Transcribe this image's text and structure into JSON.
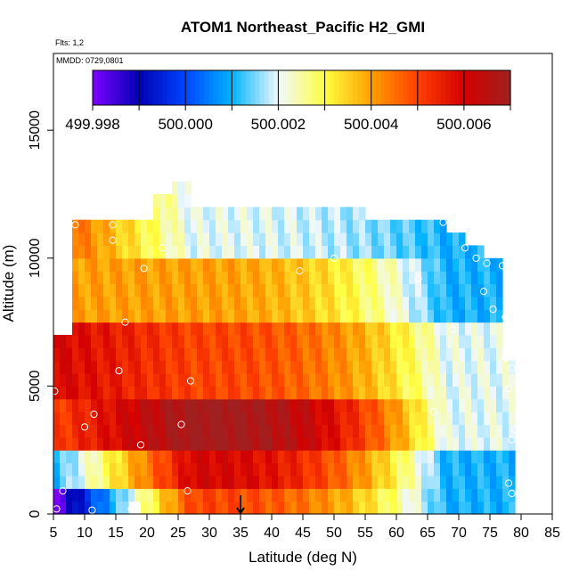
{
  "chart_data": {
    "type": "heatmap",
    "title": "ATOM1 Northeast_Pacific H2_GMI",
    "flights_label": "Flts: 1,2",
    "mmdd_label": "MMDD: 0729,0801",
    "xlabel": "Latitude (deg N)",
    "ylabel": "Altitude (m)",
    "xlim": [
      5,
      85
    ],
    "ylim": [
      0,
      18000
    ],
    "xticks": [
      "5",
      "10",
      "15",
      "20",
      "25",
      "30",
      "35",
      "40",
      "45",
      "50",
      "55",
      "60",
      "65",
      "70",
      "75",
      "80",
      "85"
    ],
    "yticks": [
      "0",
      "5000",
      "10000",
      "15000"
    ],
    "colorbar": {
      "range": [
        499.998,
        500.007
      ],
      "tick_labels": [
        "499.998",
        "500.000",
        "500.002",
        "500.004",
        "500.006"
      ],
      "tick_values": [
        499.998,
        500.0,
        500.002,
        500.004,
        500.006
      ],
      "colors": [
        "#7f00ff",
        "#0000b4",
        "#0045ff",
        "#00b4ff",
        "#f0f8ff",
        "#ffff40",
        "#ffa000",
        "#ff4000",
        "#d40000",
        "#a02020"
      ]
    },
    "field": {
      "lat_range": [
        5,
        79
      ],
      "alt_step_m": 500,
      "lat_step_deg": 1,
      "bands": [
        {
          "alt": [
            0,
            1000
          ],
          "value_south": 499.998,
          "value_mid": 500.005,
          "value_north": 500.001
        },
        {
          "alt": [
            1000,
            2500
          ],
          "value_south": 500.001,
          "value_mid": 500.006,
          "value_north": 500.001
        },
        {
          "alt": [
            2500,
            4500
          ],
          "value_south": 500.005,
          "value_mid": 500.007,
          "value_north": 500.002
        },
        {
          "alt": [
            4500,
            7500
          ],
          "value_south": 500.006,
          "value_mid": 500.005,
          "value_north": 500.002
        },
        {
          "alt": [
            7500,
            10000
          ],
          "value_south": 500.004,
          "value_mid": 500.004,
          "value_north": 500.001
        },
        {
          "alt": [
            10000,
            13000
          ],
          "value_south": 500.005,
          "value_mid": 500.002,
          "value_north": 500.001
        }
      ]
    },
    "sample_points": [
      {
        "lat": 5.5,
        "alt": 200
      },
      {
        "lat": 6.5,
        "alt": 900
      },
      {
        "lat": 5.2,
        "alt": 4800
      },
      {
        "lat": 10.0,
        "alt": 3400
      },
      {
        "lat": 11.5,
        "alt": 3900
      },
      {
        "lat": 11.2,
        "alt": 150
      },
      {
        "lat": 15.5,
        "alt": 5600
      },
      {
        "lat": 16.5,
        "alt": 7500
      },
      {
        "lat": 17.5,
        "alt": 200
      },
      {
        "lat": 19.0,
        "alt": 2700
      },
      {
        "lat": 19.5,
        "alt": 9600
      },
      {
        "lat": 14.5,
        "alt": 10700
      },
      {
        "lat": 14.5,
        "alt": 11300
      },
      {
        "lat": 8.5,
        "alt": 11300
      },
      {
        "lat": 22.5,
        "alt": 10400
      },
      {
        "lat": 25.5,
        "alt": 3500
      },
      {
        "lat": 26.5,
        "alt": 900
      },
      {
        "lat": 27.0,
        "alt": 5200
      },
      {
        "lat": 44.5,
        "alt": 9500
      },
      {
        "lat": 50.0,
        "alt": 10000
      },
      {
        "lat": 63.5,
        "alt": 9200
      },
      {
        "lat": 66.0,
        "alt": 4000
      },
      {
        "lat": 67.5,
        "alt": 11400
      },
      {
        "lat": 69.0,
        "alt": 7200
      },
      {
        "lat": 71.0,
        "alt": 10400
      },
      {
        "lat": 72.8,
        "alt": 10000
      },
      {
        "lat": 74.5,
        "alt": 9800
      },
      {
        "lat": 74.0,
        "alt": 8700
      },
      {
        "lat": 77.0,
        "alt": 9700
      },
      {
        "lat": 77.5,
        "alt": 7700
      },
      {
        "lat": 77.5,
        "alt": 6100
      },
      {
        "lat": 78.0,
        "alt": 4900
      },
      {
        "lat": 78.5,
        "alt": 2900
      },
      {
        "lat": 79.0,
        "alt": 3300
      },
      {
        "lat": 78.5,
        "alt": 5700
      },
      {
        "lat": 78.0,
        "alt": 1200
      },
      {
        "lat": 78.5,
        "alt": 800
      },
      {
        "lat": 75.5,
        "alt": 8000
      }
    ],
    "arrow_marker": {
      "lat": 35,
      "description": "down-arrow"
    }
  }
}
